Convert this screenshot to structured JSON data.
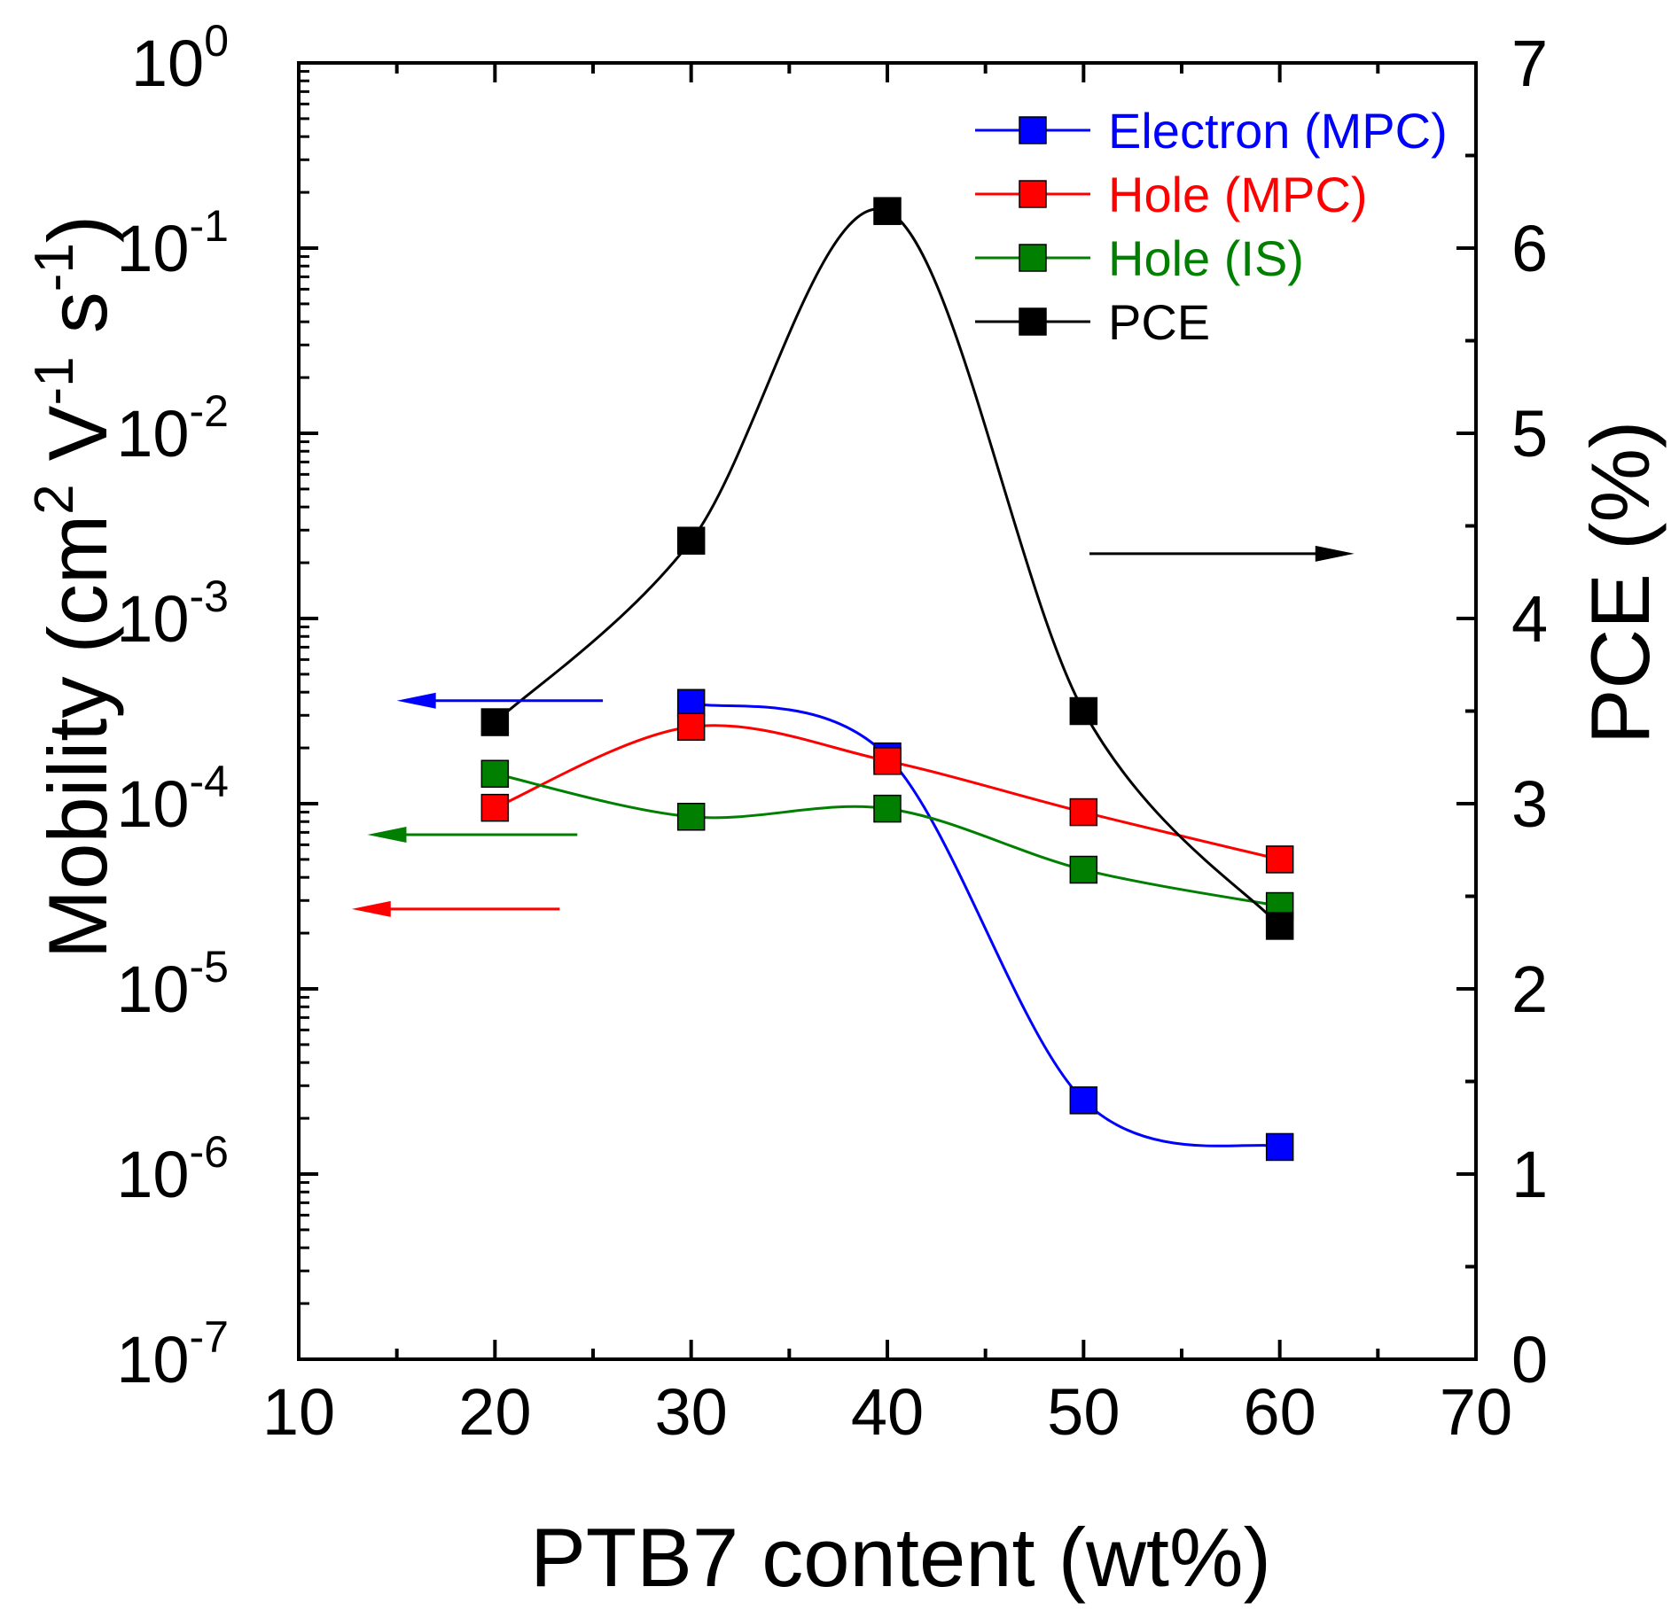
{
  "chart_data": {
    "type": "line",
    "xlabel": "PTB7 content (wt%)",
    "ylabel_left": {
      "base": "Mobility (cm",
      "sup1": "2",
      "mid": " V",
      "sup2": "-1",
      "mid2": " s",
      "sup3": "-1",
      "end": ")"
    },
    "ylabel_right": "PCE (%)",
    "xlim": [
      10,
      70
    ],
    "xticks": [
      "10",
      "20",
      "30",
      "40",
      "50",
      "60",
      "70"
    ],
    "ylim_left": [
      1e-07,
      1
    ],
    "yscale_left": "log",
    "yticks_left": [
      {
        "base": "10",
        "exp": "0"
      },
      {
        "base": "10",
        "exp": "-1"
      },
      {
        "base": "10",
        "exp": "-2"
      },
      {
        "base": "10",
        "exp": "-3"
      },
      {
        "base": "10",
        "exp": "-4"
      },
      {
        "base": "10",
        "exp": "-5"
      },
      {
        "base": "10",
        "exp": "-6"
      },
      {
        "base": "10",
        "exp": "-7"
      }
    ],
    "ylim_right": [
      0,
      7
    ],
    "yticks_right": [
      "0",
      "1",
      "2",
      "3",
      "4",
      "5",
      "6",
      "7"
    ],
    "legend_position": "top-right",
    "series": [
      {
        "name": "Electron (MPC)",
        "axis": "left",
        "color": "#0000ff",
        "x": [
          30,
          40,
          50,
          60
        ],
        "y": [
          0.00035,
          0.00018,
          2.5e-06,
          1.4e-06
        ]
      },
      {
        "name": "Hole (MPC)",
        "axis": "left",
        "color": "#ff0000",
        "x": [
          20,
          30,
          40,
          50,
          60
        ],
        "y": [
          9.5e-05,
          0.00026,
          0.00017,
          9e-05,
          5e-05
        ]
      },
      {
        "name": "Hole (IS)",
        "axis": "left",
        "color": "#007f00",
        "x": [
          20,
          30,
          40,
          50,
          60
        ],
        "y": [
          0.000145,
          8.5e-05,
          9.4e-05,
          4.4e-05,
          2.8e-05
        ]
      },
      {
        "name": "PCE",
        "axis": "right",
        "color": "#000000",
        "x": [
          20,
          30,
          40,
          50,
          60
        ],
        "y": [
          3.44,
          4.42,
          6.2,
          3.5,
          2.34
        ]
      }
    ],
    "arrows": [
      {
        "color": "#0000ff",
        "direction": "left",
        "axis": "left",
        "y": 0.00036,
        "x_from": 25.5,
        "x_to": 15
      },
      {
        "color": "#007f00",
        "direction": "left",
        "axis": "left",
        "y": 6.8e-05,
        "x_from": 24.2,
        "x_to": 13.5
      },
      {
        "color": "#ff0000",
        "direction": "left",
        "axis": "left",
        "y": 2.7e-05,
        "x_from": 23.3,
        "x_to": 12.7
      },
      {
        "color": "#000000",
        "direction": "right",
        "axis": "right",
        "y": 4.35,
        "x_from": 50.3,
        "x_to": 63.8
      }
    ]
  }
}
